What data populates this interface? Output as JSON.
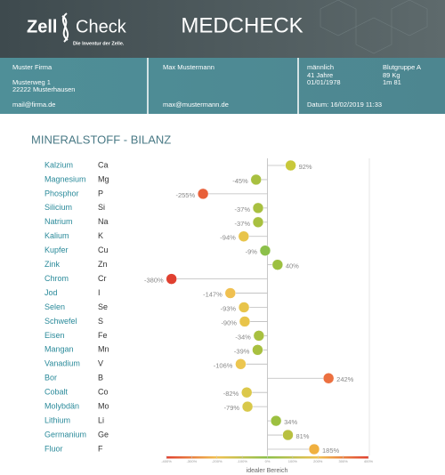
{
  "header": {
    "logo_left": "Zell",
    "logo_right": "Check",
    "tagline": "Die Inventur der Zelle.",
    "title": "MEDCHECK"
  },
  "info": {
    "company": "Muster Firma",
    "street": "Musterweg 1",
    "city": "22222 Musterhausen",
    "company_mail": "mail@firma.de",
    "person": "Max Mustermann",
    "person_mail": "max@mustermann.de",
    "sex": "männlich",
    "age": "41 Jahre",
    "birth": "01/01/1978",
    "blood": "Blutgruppe A",
    "weight": "89 Kg",
    "height": "1m 81",
    "date": "Datum: 16/02/2019 11:33"
  },
  "chart_data": {
    "type": "dot",
    "title": "MINERALSTOFF - BILANZ",
    "x_label": "idealer Bereich",
    "categories": [
      "Kalzium",
      "Magnesium",
      "Phosphor",
      "Silicium",
      "Natrium",
      "Kalium",
      "Kupfer",
      "Zink",
      "Chrom",
      "Jod",
      "Selen",
      "Schwefel",
      "Eisen",
      "Mangan",
      "Vanadium",
      "Bor",
      "Cobalt",
      "Molybdän",
      "Lithium",
      "Germanium",
      "Fluor"
    ],
    "symbols": [
      "Ca",
      "Mg",
      "P",
      "Si",
      "Na",
      "K",
      "Cu",
      "Zn",
      "Cr",
      "I",
      "Se",
      "S",
      "Fe",
      "Mn",
      "V",
      "B",
      "Co",
      "Mo",
      "Li",
      "Ge",
      "F"
    ],
    "values": [
      92,
      -45,
      -255,
      -37,
      -37,
      -94,
      -9,
      40,
      -380,
      -147,
      -93,
      -90,
      -34,
      -39,
      -106,
      242,
      -82,
      -79,
      34,
      81,
      185
    ],
    "value_labels": [
      "92%",
      "-45%",
      "-255%",
      "-37%",
      "-37%",
      "-94%",
      "-9%",
      "40%",
      "-380%",
      "-147%",
      "-93%",
      "-90%",
      "-34%",
      "-39%",
      "-106%",
      "242%",
      "-82%",
      "-79%",
      "34%",
      "81%",
      "185%"
    ],
    "colors": [
      "#c8c83a",
      "#a8c040",
      "#e8603a",
      "#a8c040",
      "#a8c040",
      "#e8c44a",
      "#8cc04a",
      "#9cc040",
      "#e04030",
      "#f0c050",
      "#e8c44a",
      "#e8c44a",
      "#a8c040",
      "#a8c040",
      "#ecc650",
      "#ec7040",
      "#dcc84a",
      "#d8c84a",
      "#9cc040",
      "#b8c040",
      "#f0b040"
    ],
    "xlim": [
      -400,
      400
    ],
    "xticks": [
      {
        "value": -400,
        "label": "-400%"
      },
      {
        "value": -300,
        "label": "-300%"
      },
      {
        "value": -200,
        "label": "-200%"
      },
      {
        "value": -100,
        "label": "-100%"
      },
      {
        "value": 0,
        "label": "0%"
      },
      {
        "value": 100,
        "label": "100%"
      },
      {
        "value": 200,
        "label": "200%"
      },
      {
        "value": 300,
        "label": "300%"
      },
      {
        "value": 400,
        "label": "400%"
      }
    ]
  }
}
